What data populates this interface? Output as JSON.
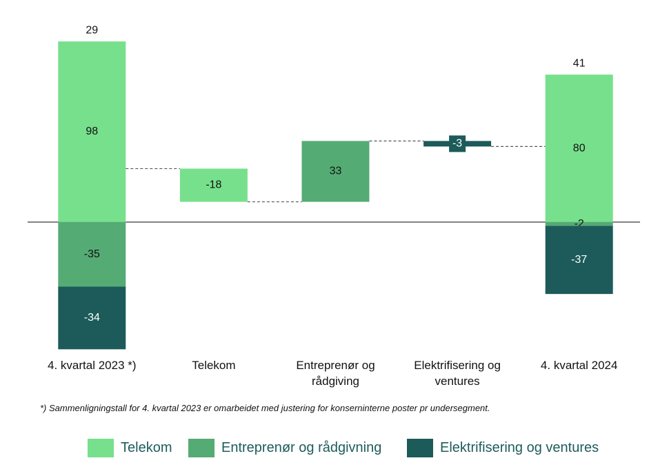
{
  "chart_data": {
    "type": "waterfall",
    "categories": [
      "4. kvartal 2023 *)",
      "Telekom",
      "Entreprenør og rådgiving",
      "Elektrifisering og ventures",
      "4. kvartal 2024"
    ],
    "series": [
      {
        "name": "Telekom",
        "color": "#77e08c",
        "values": [
          98,
          null,
          null,
          null,
          80
        ]
      },
      {
        "name": "Entreprenør og rådgivning",
        "color": "#55ab74",
        "values": [
          -35,
          null,
          null,
          null,
          -2
        ]
      },
      {
        "name": "Elektrifisering og ventures",
        "color": "#1c5b5a",
        "values": [
          -34,
          null,
          null,
          null,
          -37
        ]
      }
    ],
    "totals": [
      29,
      null,
      null,
      null,
      41
    ],
    "changes": [
      null,
      -18,
      33,
      -3,
      null
    ],
    "ylim": [
      -70,
      110
    ],
    "yticks": [
      0
    ],
    "footnote": "*) Sammenligningstall for 4. kvartal 2023 er omarbeidet med justering for konserninterne poster pr undersegment."
  }
}
